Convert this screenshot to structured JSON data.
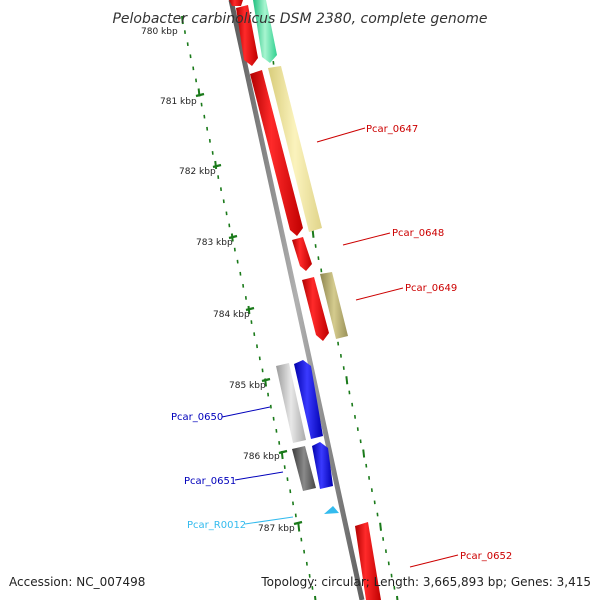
{
  "title": "Pelobacter carbinolicus DSM 2380, complete genome",
  "footer": {
    "accession": "Accession: NC_007498",
    "topology": "Topology: circular; Length: 3,665,893 bp; Genes: 3,415"
  },
  "ticks": [
    {
      "label": "780 kbp"
    },
    {
      "label": "781 kbp"
    },
    {
      "label": "782 kbp"
    },
    {
      "label": "783 kbp"
    },
    {
      "label": "784 kbp"
    },
    {
      "label": "785 kbp"
    },
    {
      "label": "786 kbp"
    },
    {
      "label": "787 kbp"
    }
  ],
  "genes": [
    {
      "label": "Pcar_0647",
      "color": "#cc0000"
    },
    {
      "label": "Pcar_0648",
      "color": "#cc0000"
    },
    {
      "label": "Pcar_0649",
      "color": "#cc0000"
    },
    {
      "label": "Pcar_0650",
      "color": "#0000bb"
    },
    {
      "label": "Pcar_0651",
      "color": "#0000bb"
    },
    {
      "label": "Pcar_R0012",
      "color": "#33bbee"
    },
    {
      "label": "Pcar_0652",
      "color": "#cc0000"
    }
  ],
  "colors": {
    "backbone": "#7a7a7a",
    "cds": "#ee0000",
    "tick_green": "#1a7a1a"
  }
}
